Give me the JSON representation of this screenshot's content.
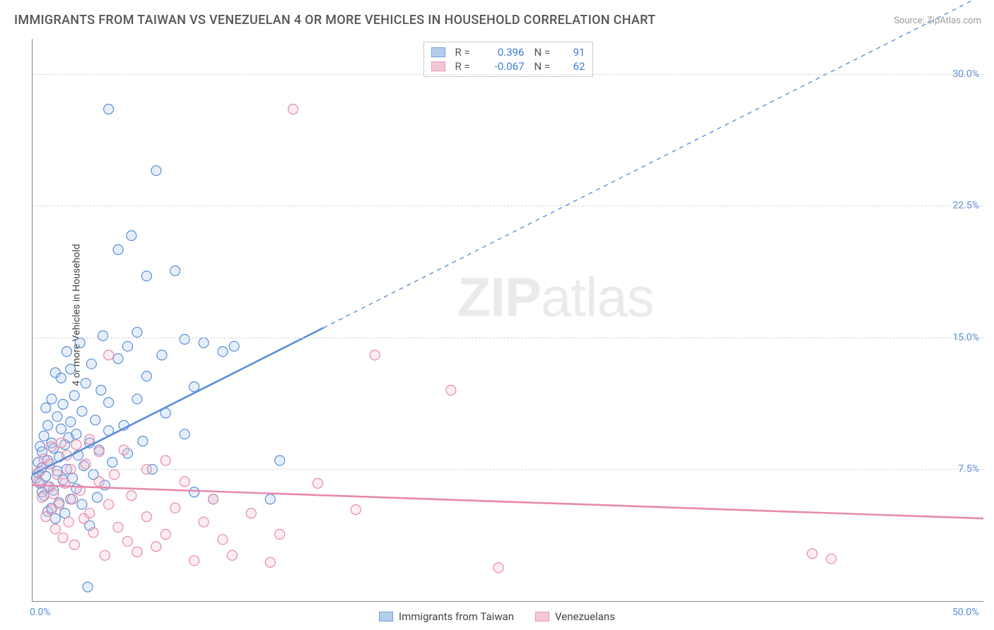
{
  "title": "IMMIGRANTS FROM TAIWAN VS VENEZUELAN 4 OR MORE VEHICLES IN HOUSEHOLD CORRELATION CHART",
  "source_prefix": "Source: ",
  "source_name": "ZipAtlas.com",
  "ylabel": "4 or more Vehicles in Household",
  "watermark_zip": "ZIP",
  "watermark_atlas": "atlas",
  "chart": {
    "type": "scatter-with-regression",
    "xlim": [
      0,
      50
    ],
    "ylim": [
      0,
      32
    ],
    "x_ticks": [
      {
        "v": 0,
        "label": "0.0%"
      },
      {
        "v": 50,
        "label": "50.0%"
      }
    ],
    "y_ticks": [
      {
        "v": 7.5,
        "label": "7.5%"
      },
      {
        "v": 15.0,
        "label": "15.0%"
      },
      {
        "v": 22.5,
        "label": "22.5%"
      },
      {
        "v": 30.0,
        "label": "30.0%"
      }
    ],
    "grid_color": "#d5d5d5",
    "background_color": "#ffffff",
    "marker_radius": 7,
    "marker_stroke_width": 1.2,
    "marker_fill_opacity": 0.28,
    "series": [
      {
        "key": "taiwan",
        "label": "Immigrants from Taiwan",
        "color_stroke": "#5b8fd6",
        "color_fill": "#a6c6ea",
        "R": "0.396",
        "N": "91",
        "regression": {
          "x1": 0,
          "y1": 7.2,
          "x2": 50,
          "y2": 34.5,
          "solid_until_x": 15.3
        },
        "points": [
          [
            0.2,
            7.0
          ],
          [
            0.3,
            7.3
          ],
          [
            0.3,
            7.9
          ],
          [
            0.4,
            6.7
          ],
          [
            0.4,
            8.8
          ],
          [
            0.5,
            6.2
          ],
          [
            0.5,
            7.6
          ],
          [
            0.5,
            8.5
          ],
          [
            0.6,
            6.0
          ],
          [
            0.6,
            9.4
          ],
          [
            0.7,
            7.1
          ],
          [
            0.7,
            11.0
          ],
          [
            0.8,
            5.1
          ],
          [
            0.8,
            8.0
          ],
          [
            0.8,
            10.0
          ],
          [
            0.9,
            6.5
          ],
          [
            0.9,
            7.8
          ],
          [
            1.0,
            5.3
          ],
          [
            1.0,
            9.0
          ],
          [
            1.0,
            11.5
          ],
          [
            1.1,
            6.3
          ],
          [
            1.1,
            8.7
          ],
          [
            1.2,
            4.7
          ],
          [
            1.2,
            13.0
          ],
          [
            1.3,
            7.4
          ],
          [
            1.3,
            10.5
          ],
          [
            1.4,
            5.6
          ],
          [
            1.4,
            8.2
          ],
          [
            1.5,
            9.8
          ],
          [
            1.5,
            12.7
          ],
          [
            1.6,
            6.9
          ],
          [
            1.6,
            11.2
          ],
          [
            1.7,
            5.0
          ],
          [
            1.7,
            8.9
          ],
          [
            1.8,
            7.5
          ],
          [
            1.8,
            14.2
          ],
          [
            1.9,
            9.3
          ],
          [
            2.0,
            5.8
          ],
          [
            2.0,
            10.2
          ],
          [
            2.0,
            13.2
          ],
          [
            2.1,
            7.0
          ],
          [
            2.2,
            11.7
          ],
          [
            2.3,
            6.4
          ],
          [
            2.3,
            9.5
          ],
          [
            2.4,
            8.3
          ],
          [
            2.5,
            14.7
          ],
          [
            2.6,
            5.5
          ],
          [
            2.6,
            10.8
          ],
          [
            2.7,
            7.7
          ],
          [
            2.8,
            12.4
          ],
          [
            2.9,
            0.8
          ],
          [
            3.0,
            4.3
          ],
          [
            3.0,
            9.0
          ],
          [
            3.1,
            13.5
          ],
          [
            3.2,
            7.2
          ],
          [
            3.3,
            10.3
          ],
          [
            3.4,
            5.9
          ],
          [
            3.5,
            8.6
          ],
          [
            3.6,
            12.0
          ],
          [
            3.7,
            15.1
          ],
          [
            3.8,
            6.6
          ],
          [
            4.0,
            9.7
          ],
          [
            4.0,
            11.3
          ],
          [
            4.0,
            28.0
          ],
          [
            4.2,
            7.9
          ],
          [
            4.5,
            13.8
          ],
          [
            4.5,
            20.0
          ],
          [
            4.8,
            10.0
          ],
          [
            5.0,
            8.4
          ],
          [
            5.0,
            14.5
          ],
          [
            5.2,
            20.8
          ],
          [
            5.5,
            11.5
          ],
          [
            5.5,
            15.3
          ],
          [
            5.8,
            9.1
          ],
          [
            6.0,
            12.8
          ],
          [
            6.0,
            18.5
          ],
          [
            6.3,
            7.5
          ],
          [
            6.8,
            14.0
          ],
          [
            7.0,
            10.7
          ],
          [
            7.5,
            18.8
          ],
          [
            8.0,
            9.5
          ],
          [
            8.0,
            14.9
          ],
          [
            8.5,
            6.2
          ],
          [
            8.5,
            12.2
          ],
          [
            9.0,
            14.7
          ],
          [
            9.5,
            5.8
          ],
          [
            10.0,
            14.2
          ],
          [
            10.6,
            14.5
          ],
          [
            6.5,
            24.5
          ],
          [
            12.5,
            5.8
          ],
          [
            13.0,
            8.0
          ]
        ]
      },
      {
        "key": "venezuelan",
        "label": "Venezuelans",
        "color_stroke": "#e68aac",
        "color_fill": "#f4bdd1",
        "R": "-0.067",
        "N": "62",
        "regression": {
          "x1": 0,
          "y1": 6.6,
          "x2": 50,
          "y2": 4.7,
          "solid_until_x": 50
        },
        "points": [
          [
            0.3,
            6.8
          ],
          [
            0.4,
            7.4
          ],
          [
            0.5,
            5.9
          ],
          [
            0.6,
            8.1
          ],
          [
            0.7,
            4.8
          ],
          [
            0.8,
            6.5
          ],
          [
            0.9,
            7.8
          ],
          [
            1.0,
            5.2
          ],
          [
            1.0,
            8.8
          ],
          [
            1.1,
            6.1
          ],
          [
            1.2,
            4.1
          ],
          [
            1.3,
            7.2
          ],
          [
            1.4,
            5.5
          ],
          [
            1.5,
            9.0
          ],
          [
            1.6,
            3.6
          ],
          [
            1.7,
            6.7
          ],
          [
            1.8,
            8.3
          ],
          [
            1.9,
            4.5
          ],
          [
            2.0,
            7.5
          ],
          [
            2.1,
            5.8
          ],
          [
            2.2,
            3.2
          ],
          [
            2.3,
            8.9
          ],
          [
            2.5,
            6.3
          ],
          [
            2.7,
            4.7
          ],
          [
            2.8,
            7.8
          ],
          [
            3.0,
            5.0
          ],
          [
            3.0,
            9.2
          ],
          [
            3.2,
            3.9
          ],
          [
            3.5,
            6.8
          ],
          [
            3.5,
            8.5
          ],
          [
            3.8,
            2.6
          ],
          [
            4.0,
            5.5
          ],
          [
            4.0,
            14.0
          ],
          [
            4.3,
            7.2
          ],
          [
            4.5,
            4.2
          ],
          [
            4.8,
            8.6
          ],
          [
            5.0,
            3.4
          ],
          [
            5.2,
            6.0
          ],
          [
            5.5,
            2.8
          ],
          [
            6.0,
            7.5
          ],
          [
            6.0,
            4.8
          ],
          [
            6.5,
            3.1
          ],
          [
            7.0,
            8.0
          ],
          [
            7.0,
            3.8
          ],
          [
            7.5,
            5.3
          ],
          [
            8.0,
            6.8
          ],
          [
            8.5,
            2.3
          ],
          [
            9.0,
            4.5
          ],
          [
            9.5,
            5.8
          ],
          [
            10.0,
            3.5
          ],
          [
            10.5,
            2.6
          ],
          [
            11.5,
            5.0
          ],
          [
            12.5,
            2.2
          ],
          [
            13.0,
            3.8
          ],
          [
            13.7,
            28.0
          ],
          [
            15.0,
            6.7
          ],
          [
            17.0,
            5.2
          ],
          [
            18.0,
            14.0
          ],
          [
            22.0,
            12.0
          ],
          [
            24.5,
            1.9
          ],
          [
            41.0,
            2.7
          ],
          [
            42.0,
            2.4
          ]
        ]
      }
    ]
  },
  "legend_top_labels": {
    "R": "R =",
    "N": "N ="
  },
  "legend_bottom": [
    {
      "key": "taiwan"
    },
    {
      "key": "venezuelan"
    }
  ]
}
